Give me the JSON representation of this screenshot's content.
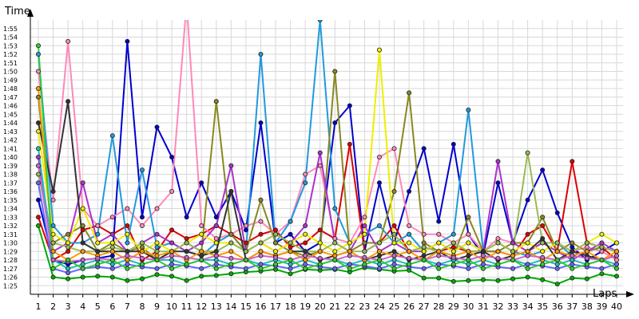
{
  "chart_data": {
    "type": "line",
    "ylabel": "Time",
    "xlabel": "Laps",
    "x": [
      1,
      2,
      3,
      4,
      5,
      6,
      7,
      8,
      9,
      10,
      11,
      12,
      13,
      14,
      15,
      16,
      17,
      18,
      19,
      20,
      21,
      22,
      23,
      24,
      25,
      26,
      27,
      28,
      29,
      30,
      31,
      32,
      33,
      34,
      35,
      36,
      37,
      38,
      39,
      40
    ],
    "y_ticks": [
      "1:25",
      "1:26",
      "1:27",
      "1:28",
      "1:29",
      "1:30",
      "1:31",
      "1:32",
      "1:33",
      "1:34",
      "1:35",
      "1:36",
      "1:37",
      "1:38",
      "1:39",
      "1:40",
      "1:41",
      "1:42",
      "1:43",
      "1:44",
      "1:45",
      "1:46",
      "1:47",
      "1:48",
      "1:49",
      "1:50",
      "1:51",
      "1:52",
      "1:53",
      "1:54",
      "1:55"
    ],
    "ylim_seconds": [
      84,
      116
    ],
    "grid": true,
    "series": [
      {
        "color": "#00aa00",
        "values": [
          92,
          86,
          85.8,
          86,
          86.1,
          86,
          85.6,
          85.8,
          86.3,
          86.1,
          85.6,
          86.1,
          86.2,
          86.4,
          86.6,
          86.7,
          86.9,
          86.4,
          86.9,
          86.8,
          86.9,
          86.6,
          87.1,
          86.9,
          86.7,
          86.8,
          85.9,
          85.9,
          85.5,
          85.6,
          85.7,
          85.6,
          85.8,
          86,
          85.7,
          85.2,
          85.9,
          85.8,
          86.4,
          86.1
        ]
      },
      {
        "color": "#0000cc",
        "values": [
          95,
          88,
          87.5,
          88,
          88.2,
          88.5,
          113.5,
          93,
          103.5,
          100,
          93,
          97,
          93,
          96,
          91.5,
          104,
          90,
          91,
          89,
          90,
          104,
          106,
          89,
          97,
          90,
          96,
          101,
          92.5,
          101.5,
          91,
          88.5,
          97,
          90,
          95,
          98.5,
          93.5,
          89.5,
          88,
          89,
          90
        ]
      },
      {
        "color": "#dd0000",
        "values": [
          93,
          88,
          89,
          91.5,
          92,
          91,
          92,
          88,
          89,
          91.5,
          90.5,
          91,
          92,
          91,
          90,
          91,
          91.5,
          89.5,
          90,
          91.5,
          90.5,
          101.5,
          89,
          90,
          92,
          89,
          89.5,
          89,
          89.5,
          89,
          89,
          89,
          88.5,
          91,
          92,
          89,
          99.5,
          90,
          89.5,
          88
        ]
      },
      {
        "color": "#ff88bb",
        "values": [
          110,
          95,
          113.5,
          94,
          92,
          93,
          94,
          92,
          94,
          96,
          118,
          92,
          90.5,
          91,
          92,
          92.5,
          91,
          92.5,
          98,
          99,
          90.5,
          90,
          93,
          100,
          101,
          92,
          91,
          91,
          90,
          91,
          89,
          90.5,
          90,
          89,
          90,
          90,
          89,
          89.5,
          89,
          88
        ]
      },
      {
        "color": "#2299dd",
        "values": [
          112,
          92,
          90,
          90,
          91,
          102.5,
          90,
          98.5,
          89.5,
          90,
          89,
          88.5,
          90,
          91,
          89,
          112,
          90,
          92.5,
          97,
          116,
          94,
          90,
          91,
          92,
          90,
          91,
          89,
          90,
          91,
          105.5,
          89,
          90,
          89,
          88.5,
          89,
          90,
          88.5,
          89,
          89.5,
          89
        ]
      },
      {
        "color": "#888822",
        "values": [
          107,
          90,
          91,
          92,
          89,
          90,
          89,
          89.5,
          88,
          89,
          90,
          89,
          106.5,
          91,
          89,
          95,
          90,
          89,
          88.5,
          89,
          110,
          89,
          90,
          90,
          96,
          107.5,
          90,
          89,
          88.5,
          93,
          89,
          89,
          90,
          90,
          93,
          89,
          90,
          89,
          89.5,
          89
        ]
      },
      {
        "color": "#aa33cc",
        "values": [
          100,
          89,
          90,
          97,
          90,
          91,
          89,
          90,
          91,
          90,
          89,
          90,
          92,
          99,
          89,
          90,
          89,
          90,
          92,
          100.5,
          90,
          89,
          92,
          89,
          90,
          89,
          89,
          90,
          89,
          90,
          89,
          99.5,
          90,
          89,
          90,
          89,
          88,
          89,
          90,
          89
        ]
      },
      {
        "color": "#eeee00",
        "values": [
          103,
          91,
          90,
          94,
          90,
          90,
          91,
          89,
          90,
          89,
          90,
          91,
          90,
          90,
          89,
          90,
          89,
          90,
          91,
          90,
          89,
          90,
          91,
          112.5,
          90,
          90,
          89,
          90,
          89,
          90,
          89,
          90,
          89,
          90,
          89,
          90,
          89,
          90,
          91,
          90
        ]
      },
      {
        "color": "#99bb55",
        "values": [
          98,
          90,
          89.5,
          89,
          89,
          89.5,
          89,
          90,
          89,
          89,
          90,
          89,
          89,
          90,
          89,
          90,
          91,
          90,
          89,
          89,
          90,
          89,
          89,
          90,
          91,
          89,
          89.5,
          89,
          90,
          89,
          89,
          90,
          89,
          100.5,
          90,
          90,
          89,
          90,
          89.5,
          89
        ]
      },
      {
        "color": "#333333",
        "values": [
          104,
          96,
          106.5,
          90,
          89,
          89,
          89,
          89,
          88,
          89,
          89,
          88.5,
          89,
          96,
          88,
          89,
          88.5,
          89,
          89,
          88,
          88.5,
          89,
          88,
          88.5,
          89,
          88,
          88.5,
          89,
          88,
          88.5,
          89,
          88,
          88.5,
          89,
          90.5,
          88,
          89,
          88.5,
          88,
          88.5
        ]
      },
      {
        "color": "#22bbbb",
        "values": [
          101,
          88,
          87,
          87.5,
          88,
          87.5,
          88,
          87.5,
          88,
          88,
          87.5,
          88,
          88,
          87.5,
          88,
          87.5,
          88,
          87.5,
          88,
          87.5,
          88,
          87.5,
          88,
          87.5,
          88,
          87.5,
          88,
          87.5,
          88,
          87.5,
          88,
          87.5,
          88,
          87.5,
          88,
          87.5,
          88,
          87.5,
          88,
          87.5
        ]
      },
      {
        "color": "#ff9900",
        "values": [
          108,
          89,
          88,
          89,
          88.5,
          89,
          88,
          89,
          88.5,
          89,
          88,
          89,
          88.5,
          89,
          88,
          89,
          88.5,
          89,
          88,
          89,
          88.5,
          89,
          88,
          89,
          88.5,
          89,
          88,
          89,
          88.5,
          89,
          88,
          89,
          88.5,
          89,
          88,
          89,
          88.5,
          89,
          88,
          89
        ]
      },
      {
        "color": "#6666ff",
        "values": [
          97,
          87,
          86.5,
          87,
          87.2,
          87,
          87.5,
          87.2,
          87,
          87.5,
          87.3,
          87,
          87.5,
          87.2,
          87,
          87.5,
          87.3,
          87,
          87.5,
          87.2,
          87,
          87.5,
          87.3,
          87,
          87.5,
          87.2,
          87,
          87.5,
          87.3,
          87,
          87.5,
          87.2,
          87,
          87.5,
          87.3,
          87,
          87.5,
          87.2,
          87,
          87.5
        ]
      },
      {
        "color": "#cc66cc",
        "values": [
          99,
          88,
          87.8,
          88,
          88.2,
          88,
          88.5,
          88.2,
          88,
          88.5,
          88.3,
          88,
          88.5,
          88.2,
          88,
          88.5,
          88.3,
          88,
          88.5,
          88.2,
          88,
          88.5,
          88.3,
          88,
          88.5,
          88.2,
          88,
          88.5,
          88.3,
          88,
          88.5,
          88.2,
          88,
          88.5,
          88.3,
          88,
          88.5,
          88.2,
          88,
          88.5
        ]
      },
      {
        "color": "#33cc33",
        "values": [
          113,
          87,
          88,
          87,
          87.5,
          88,
          87,
          87.5,
          88,
          87,
          87.5,
          88,
          87,
          87.5,
          88,
          87,
          87.5,
          88,
          87,
          87.5,
          88,
          87,
          87.5,
          88,
          87,
          87.5,
          88,
          87,
          87.5,
          88,
          87,
          87.5,
          88,
          87,
          87.5,
          88,
          87,
          87.5,
          88,
          87
        ]
      }
    ]
  }
}
